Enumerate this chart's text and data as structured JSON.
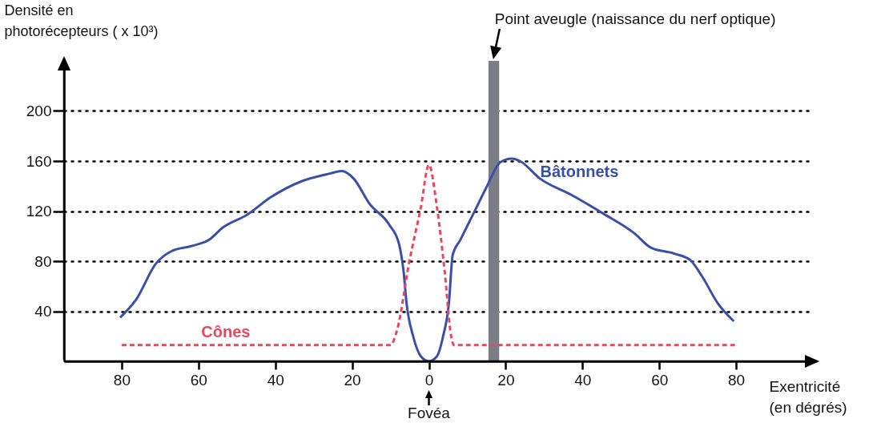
{
  "chart_data": {
    "type": "line",
    "ylabel": "Densité en photorécepteurs ( x 10³)",
    "xlabel": "Exentricité (en dégrés)",
    "x": [
      -80.4,
      -76.3,
      -71.1,
      -67,
      -61.9,
      -57.3,
      -53.6,
      -47.4,
      -41.2,
      -33,
      -25.8,
      -22.7,
      -19.6,
      -15.5,
      -10.3,
      -7.8,
      -6.6,
      -5.8,
      -4.1,
      -2.1,
      0,
      2.1,
      3.7,
      5.2,
      6.2,
      8.2,
      12.4,
      15,
      18.6,
      21.6,
      23.7,
      28.9,
      37.1,
      45.4,
      53.6,
      57.7,
      63.9,
      68,
      71.1,
      75.3,
      79.4
    ],
    "series": [
      {
        "name": "Bâtonnets",
        "color": "#3a4fa8",
        "line_style": "solid",
        "values": [
          35,
          49,
          78,
          88,
          92,
          97,
          107,
          117,
          131,
          144,
          150,
          152,
          146,
          126,
          109,
          94,
          72,
          46,
          20,
          4,
          0,
          4,
          20,
          46,
          85,
          97,
          123,
          139,
          159,
          162,
          160,
          146,
          133,
          118,
          102,
          91,
          86,
          81,
          68,
          46,
          32
        ]
      },
      {
        "name": "Cônes",
        "color": "#e8485e",
        "line_style": "dashed",
        "x": [
          -80,
          -10,
          -8.2,
          -5.2,
          -2.1,
          0,
          2.1,
          4.1,
          5.8,
          6.5,
          80
        ],
        "values": [
          13,
          13,
          26,
          78,
          123,
          157,
          123,
          72,
          20,
          13,
          13
        ]
      }
    ],
    "xlim": [
      -95,
      100
    ],
    "xticks": [
      {
        "value": -80,
        "label": "80"
      },
      {
        "value": -60,
        "label": "60"
      },
      {
        "value": -40,
        "label": "40"
      },
      {
        "value": -20,
        "label": "20"
      },
      0,
      20,
      40,
      60,
      80
    ],
    "ylim": [
      0,
      240
    ],
    "yticks": [
      40,
      80,
      120,
      160,
      200
    ],
    "grid": "y",
    "legend": false,
    "bands": [
      {
        "axis": "x",
        "from": 15.5,
        "to": 18.3,
        "label": "Point aveugle (naissance du nerf optique)",
        "color": "#7b7f85"
      }
    ],
    "annotations": [
      {
        "text": "Fovéa",
        "x": 0,
        "y": 0
      }
    ]
  }
}
